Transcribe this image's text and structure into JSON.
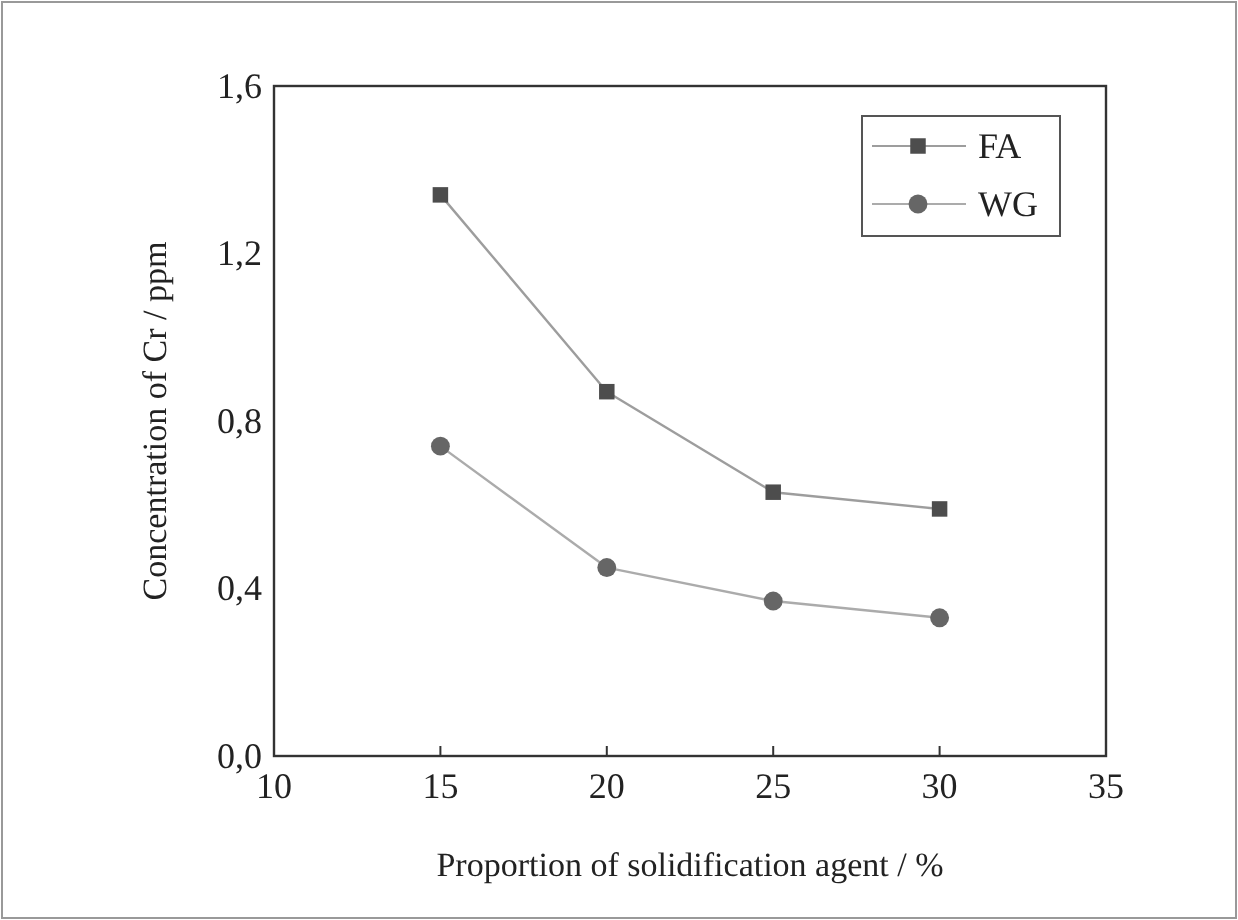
{
  "chart_data": {
    "type": "line",
    "xlabel": "Proportion of solidification agent / %",
    "ylabel": "Concentration of Cr / ppm",
    "x": [
      15,
      20,
      25,
      30
    ],
    "series": [
      {
        "name": "FA",
        "color": "#4d4d4d",
        "marker": "square",
        "values": [
          1.34,
          0.87,
          0.63,
          0.59
        ]
      },
      {
        "name": "WG",
        "color": "#666666",
        "marker": "circle",
        "values": [
          0.74,
          0.45,
          0.37,
          0.33
        ]
      }
    ],
    "xlim": [
      10,
      35
    ],
    "xticks": [
      10,
      15,
      20,
      25,
      30,
      35
    ],
    "ylim": [
      0,
      1.6
    ],
    "yticks": [
      {
        "value": 0,
        "label": "0,0"
      },
      {
        "value": 0.4,
        "label": "0,4"
      },
      {
        "value": 0.8,
        "label": "0,8"
      },
      {
        "value": 1.2,
        "label": "1,2"
      },
      {
        "value": 1.6,
        "label": "1,6"
      }
    ],
    "legend": "top right",
    "grid": false
  }
}
